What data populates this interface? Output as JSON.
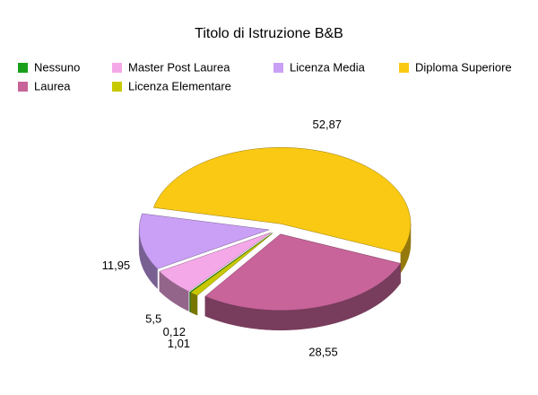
{
  "chart_data": {
    "type": "pie",
    "title": "Titolo di Istruzione B&B",
    "categories": [
      "Nessuno",
      "Master Post Laurea",
      "Licenza Media",
      "Diploma Superiore",
      "Laurea",
      "Licenza Elementare"
    ],
    "values": [
      0.12,
      5.5,
      11.95,
      52.87,
      28.55,
      1.01
    ],
    "value_labels": [
      "0,12",
      "5,5",
      "11,95",
      "52,87",
      "28,55",
      "1,01"
    ],
    "colors": [
      "#1aa01a",
      "#f5a8e8",
      "#c9a0f5",
      "#f9c914",
      "#c8649a",
      "#c8c800"
    ],
    "legend": "top"
  }
}
